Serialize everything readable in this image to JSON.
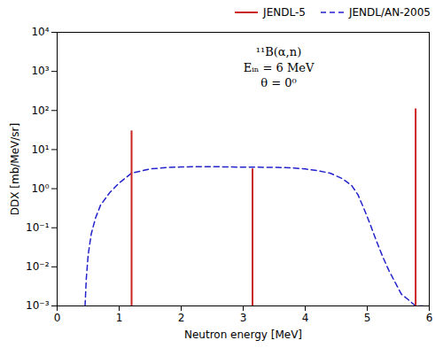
{
  "chart_data": {
    "type": "line",
    "xlabel": "Neutron energy [MeV]",
    "ylabel": "DDX [mb/MeV/sr]",
    "xlim": [
      0,
      6
    ],
    "ylim": [
      0.001,
      10000
    ],
    "xticks": [
      0,
      1,
      2,
      3,
      4,
      5,
      6
    ],
    "yticks": [
      {
        "value": 0.001,
        "label": "10⁻³"
      },
      {
        "value": 0.01,
        "label": "10⁻²"
      },
      {
        "value": 0.1,
        "label": "10⁻¹"
      },
      {
        "value": 1,
        "label": "10⁰"
      },
      {
        "value": 10,
        "label": "10¹"
      },
      {
        "value": 100,
        "label": "10²"
      },
      {
        "value": 1000,
        "label": "10³"
      },
      {
        "value": 10000,
        "label": "10⁴"
      }
    ],
    "log": "y",
    "grid": false,
    "legend": "upper right",
    "annotations": [
      "¹¹B(α,n)",
      "Eᵢₙ = 6 MeV",
      "θ = 0⁰"
    ],
    "series": [
      {
        "name": "JENDL-5",
        "type": "rule",
        "color": "#cc2222",
        "line_style": "solid",
        "x": [
          1.2,
          3.15,
          5.78
        ],
        "values": [
          30.0,
          3.2,
          110.0
        ],
        "bottoms": [
          0.001,
          0.001,
          0.001
        ]
      },
      {
        "name": "JENDL/AN-2005",
        "type": "line",
        "color": "#2222cc",
        "line_style": "dashed",
        "x": [
          0.45,
          0.47,
          0.5,
          0.55,
          0.62,
          0.7,
          0.85,
          1.0,
          1.2,
          1.5,
          1.8,
          2.0,
          2.2,
          2.5,
          2.8,
          3.0,
          3.2,
          3.5,
          3.8,
          4.0,
          4.2,
          4.4,
          4.6,
          4.75,
          4.85,
          4.95,
          5.05,
          5.15,
          5.25,
          5.35,
          5.45,
          5.55,
          5.65,
          5.72,
          5.78,
          5.82,
          5.86,
          5.9
        ],
        "values": [
          0.001,
          0.005,
          0.02,
          0.07,
          0.18,
          0.38,
          0.8,
          1.4,
          2.5,
          3.2,
          3.5,
          3.6,
          3.65,
          3.65,
          3.6,
          3.55,
          3.55,
          3.5,
          3.4,
          3.2,
          2.9,
          2.5,
          1.8,
          1.2,
          0.7,
          0.3,
          0.12,
          0.045,
          0.018,
          0.008,
          0.004,
          0.002,
          0.0015,
          0.0012,
          0.001,
          0.001,
          0.001,
          0.001
        ]
      }
    ]
  }
}
